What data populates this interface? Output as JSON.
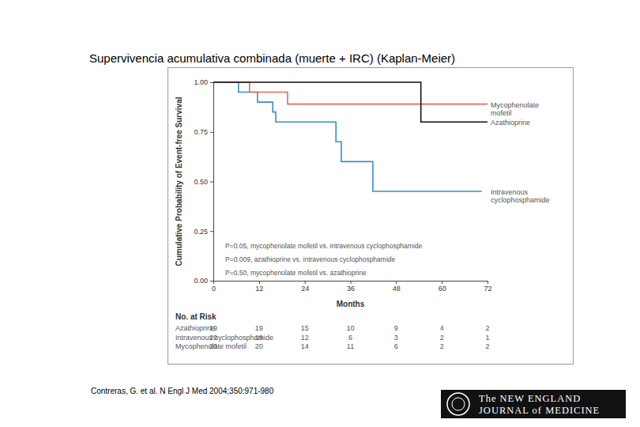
{
  "chart_data": {
    "type": "line",
    "title": "Supervivencia acumulativa combinada (muerte + IRC) (Kaplan-Meier)",
    "x_label": "Months",
    "y_label": "Cumulative Probability of Event-free Survival",
    "xlim": [
      0,
      72
    ],
    "xticks": [
      0,
      12,
      24,
      36,
      48,
      60,
      72
    ],
    "ylim": [
      0,
      1
    ],
    "yticks": [
      {
        "value": 0,
        "label": "0.00"
      },
      {
        "value": 0.25,
        "label": "0.25"
      },
      {
        "value": 0.5,
        "label": "0.50"
      },
      {
        "value": 0.75,
        "label": "0.75"
      },
      {
        "value": 1,
        "label": "1.00"
      }
    ],
    "grid": false,
    "series": [
      {
        "name": "Intravenous cyclophosphamide",
        "color": "#3a8fc8",
        "line_style": "step",
        "x": [
          0,
          6.6,
          11.6,
          15.6,
          16.4,
          32.2,
          33.6,
          41.9,
          70.5
        ],
        "values": [
          1,
          0.95,
          0.9,
          0.85,
          0.8,
          0.7,
          0.6,
          0.45,
          0.45
        ]
      },
      {
        "name": "Mycophenolate mofetil",
        "color": "#e8665a",
        "line_style": "step",
        "x": [
          0,
          9.5,
          19.5,
          72
        ],
        "values": [
          1,
          0.95,
          0.89,
          0.89
        ]
      },
      {
        "name": "Azathioprine",
        "color": "#111111",
        "line_style": "step",
        "x": [
          0,
          54.5,
          72
        ],
        "values": [
          1,
          0.8,
          0.8
        ]
      }
    ],
    "annotations": [
      "P=0.05, mycophenolate mofetil vs. intravenous cyclophosphamide",
      "P=0.009, azathioprine vs. intravenous cyclophosphamide",
      "P=0.50, mycophenolate mofetil vs. azathioprine"
    ],
    "risk_table": {
      "title": "No. at Risk",
      "rows": [
        {
          "name": "Azathioprine",
          "values": [
            19,
            19,
            15,
            10,
            9,
            4,
            2
          ]
        },
        {
          "name": "Intravenous cyclophosphamide",
          "values": [
            20,
            19,
            12,
            6,
            3,
            2,
            1
          ]
        },
        {
          "name": "Mycophenolate mofetil",
          "values": [
            20,
            20,
            14,
            11,
            6,
            2,
            2
          ]
        }
      ]
    }
  },
  "footer": {
    "citation": "Contreras, G. et al. N Engl J Med 2004;350:971-980",
    "logo": [
      "The NEW ENGLAND",
      "JOURNAL of MEDICINE"
    ]
  }
}
